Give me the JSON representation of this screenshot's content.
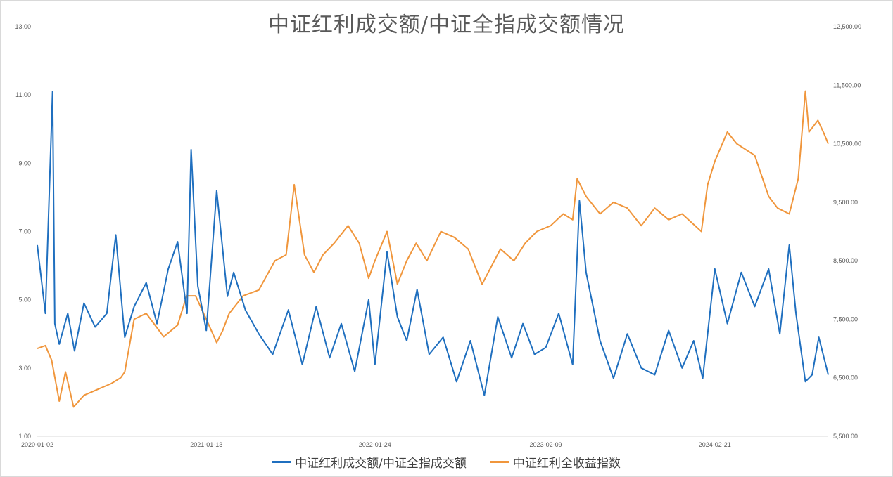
{
  "chart_data": {
    "type": "line",
    "title": "中证红利成交额/中证全指成交额情况",
    "x_ticks": [
      "2020-01-02",
      "2021-01-13",
      "2022-01-24",
      "2023-02-09",
      "2024-02-21"
    ],
    "x_range": [
      "2020-01-02",
      "2024-10-31"
    ],
    "y_left": {
      "range": [
        1.0,
        13.0
      ],
      "ticks": [
        "1.00",
        "3.00",
        "5.00",
        "7.00",
        "9.00",
        "11.00",
        "13.00"
      ]
    },
    "y_right": {
      "range": [
        5500,
        12500
      ],
      "ticks": [
        "5,500.00",
        "6,500.00",
        "7,500.00",
        "8,500.00",
        "9,500.00",
        "10,500.00",
        "11,500.00",
        "12,500.00"
      ]
    },
    "grid": false,
    "legend_position": "bottom",
    "series": [
      {
        "name": "中证红利成交额/中证全指成交额",
        "axis": "left",
        "color": "#1f6fbf",
        "x": [
          "2020-01-02",
          "2020-01-20",
          "2020-02-05",
          "2020-02-10",
          "2020-02-20",
          "2020-03-10",
          "2020-03-25",
          "2020-04-15",
          "2020-05-10",
          "2020-06-05",
          "2020-06-25",
          "2020-07-15",
          "2020-08-05",
          "2020-09-01",
          "2020-09-25",
          "2020-10-20",
          "2020-11-10",
          "2020-12-01",
          "2020-12-10",
          "2020-12-25",
          "2021-01-13",
          "2021-02-05",
          "2021-03-01",
          "2021-03-15",
          "2021-04-10",
          "2021-05-10",
          "2021-06-10",
          "2021-07-15",
          "2021-08-15",
          "2021-09-15",
          "2021-10-15",
          "2021-11-10",
          "2021-12-10",
          "2022-01-10",
          "2022-01-24",
          "2022-02-20",
          "2022-03-15",
          "2022-04-05",
          "2022-04-28",
          "2022-05-25",
          "2022-06-25",
          "2022-07-25",
          "2022-08-25",
          "2022-09-25",
          "2022-10-25",
          "2022-11-25",
          "2022-12-20",
          "2023-01-15",
          "2023-02-09",
          "2023-03-10",
          "2023-04-10",
          "2023-04-25",
          "2023-05-10",
          "2023-06-10",
          "2023-07-10",
          "2023-08-10",
          "2023-09-10",
          "2023-10-10",
          "2023-11-10",
          "2023-12-10",
          "2024-01-05",
          "2024-01-25",
          "2024-02-21",
          "2024-03-20",
          "2024-04-20",
          "2024-05-20",
          "2024-06-20",
          "2024-07-15",
          "2024-08-05",
          "2024-08-20",
          "2024-09-10",
          "2024-09-25",
          "2024-10-10",
          "2024-10-31"
        ],
        "values": [
          6.6,
          4.6,
          11.1,
          4.3,
          3.7,
          4.6,
          3.5,
          4.9,
          4.2,
          4.6,
          6.9,
          3.9,
          4.8,
          5.5,
          4.3,
          5.9,
          6.7,
          4.6,
          9.4,
          5.4,
          4.1,
          8.2,
          5.1,
          5.8,
          4.7,
          4.0,
          3.4,
          4.7,
          3.1,
          4.8,
          3.3,
          4.3,
          2.9,
          5.0,
          3.1,
          6.4,
          4.5,
          3.8,
          5.3,
          3.4,
          3.9,
          2.6,
          3.8,
          2.2,
          4.5,
          3.3,
          4.3,
          3.4,
          3.6,
          4.6,
          3.1,
          7.9,
          5.8,
          3.8,
          2.7,
          4.0,
          3.0,
          2.8,
          4.1,
          3.0,
          3.8,
          2.7,
          5.9,
          4.3,
          5.8,
          4.8,
          5.9,
          4.0,
          6.6,
          4.6,
          2.6,
          2.8,
          3.9,
          2.8
        ]
      },
      {
        "name": "中证红利全收益指数",
        "axis": "right",
        "color": "#f0963c",
        "x": [
          "2020-01-02",
          "2020-01-20",
          "2020-02-03",
          "2020-02-20",
          "2020-03-05",
          "2020-03-23",
          "2020-04-15",
          "2020-05-15",
          "2020-06-15",
          "2020-07-06",
          "2020-07-15",
          "2020-08-05",
          "2020-09-01",
          "2020-10-10",
          "2020-11-10",
          "2020-11-30",
          "2020-12-20",
          "2021-01-13",
          "2021-02-05",
          "2021-02-18",
          "2021-03-05",
          "2021-04-05",
          "2021-05-10",
          "2021-06-15",
          "2021-07-10",
          "2021-07-28",
          "2021-08-20",
          "2021-09-10",
          "2021-09-30",
          "2021-10-25",
          "2021-11-25",
          "2021-12-20",
          "2022-01-10",
          "2022-01-24",
          "2022-02-20",
          "2022-03-15",
          "2022-04-05",
          "2022-04-26",
          "2022-05-20",
          "2022-06-20",
          "2022-07-20",
          "2022-08-20",
          "2022-09-20",
          "2022-10-31",
          "2022-11-30",
          "2022-12-25",
          "2023-01-20",
          "2023-02-20",
          "2023-03-20",
          "2023-04-10",
          "2023-04-20",
          "2023-05-10",
          "2023-06-10",
          "2023-07-10",
          "2023-08-10",
          "2023-09-10",
          "2023-10-10",
          "2023-11-10",
          "2023-12-10",
          "2024-01-22",
          "2024-02-05",
          "2024-02-21",
          "2024-03-20",
          "2024-04-10",
          "2024-05-20",
          "2024-06-20",
          "2024-07-10",
          "2024-08-05",
          "2024-08-25",
          "2024-09-10",
          "2024-09-18",
          "2024-10-08",
          "2024-10-20",
          "2024-10-31"
        ],
        "values": [
          7000,
          7050,
          6800,
          6100,
          6600,
          6000,
          6200,
          6300,
          6400,
          6500,
          6600,
          7500,
          7600,
          7200,
          7400,
          7900,
          7900,
          7500,
          7100,
          7300,
          7600,
          7900,
          8000,
          8500,
          8600,
          9800,
          8600,
          8300,
          8600,
          8800,
          9100,
          8800,
          8200,
          8500,
          9000,
          8100,
          8500,
          8800,
          8500,
          9000,
          8900,
          8700,
          8100,
          8700,
          8500,
          8800,
          9000,
          9100,
          9300,
          9200,
          9900,
          9600,
          9300,
          9500,
          9400,
          9100,
          9400,
          9200,
          9300,
          9000,
          9800,
          10200,
          10700,
          10500,
          10300,
          9600,
          9400,
          9300,
          9900,
          11400,
          10700,
          10900,
          10700,
          10500
        ]
      }
    ]
  }
}
